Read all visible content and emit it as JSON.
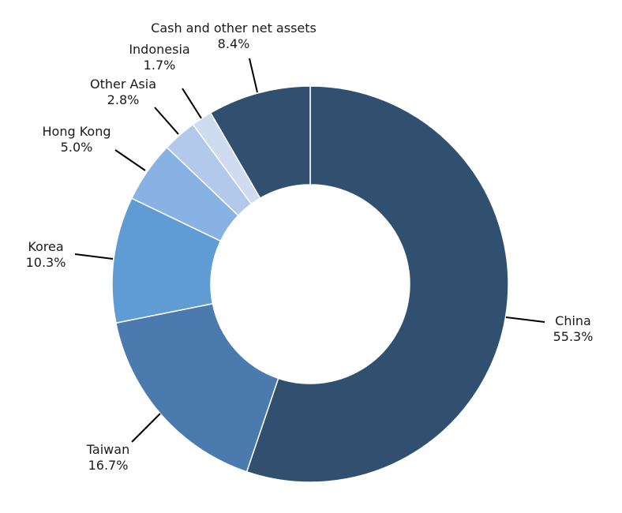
{
  "chart_data": {
    "type": "pie",
    "style": "donut",
    "start_angle_deg": 0,
    "direction": "clockwise",
    "slices": [
      {
        "label": "China",
        "value": 55.3,
        "value_label": "55.3%",
        "color": "#31506f"
      },
      {
        "label": "Taiwan",
        "value": 16.7,
        "value_label": "16.7%",
        "color": "#4a7aae"
      },
      {
        "label": "Korea",
        "value": 10.3,
        "value_label": "10.3%",
        "color": "#5f9cd3"
      },
      {
        "label": "Hong Kong",
        "value": 5.0,
        "value_label": "5.0%",
        "color": "#88b2e3"
      },
      {
        "label": "Other Asia",
        "value": 2.8,
        "value_label": "2.8%",
        "color": "#b2c9ec"
      },
      {
        "label": "Indonesia",
        "value": 1.7,
        "value_label": "1.7%",
        "color": "#cedbf1"
      },
      {
        "label": "Cash and other net assets",
        "value": 8.4,
        "value_label": "8.4%",
        "color": "#31506f"
      }
    ]
  }
}
